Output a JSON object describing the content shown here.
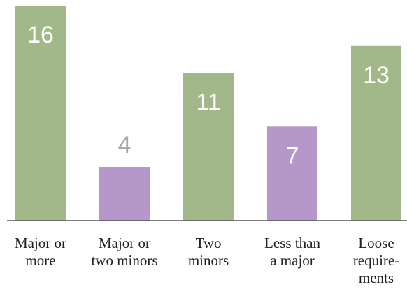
{
  "chart_data": {
    "type": "bar",
    "title": "",
    "xlabel": "",
    "ylabel": "",
    "ylim": [
      0,
      16
    ],
    "grid": false,
    "categories": [
      "Major or more",
      "Major or two minors",
      "Two minors",
      "Less than a major",
      "Loose requirements"
    ],
    "category_label_lines": [
      [
        "Major or",
        "more"
      ],
      [
        "Major or",
        "two minors"
      ],
      [
        "Two",
        "minors"
      ],
      [
        "Less than",
        "a major"
      ],
      [
        "Loose",
        "require-",
        "ments"
      ]
    ],
    "values": [
      16,
      4,
      11,
      7,
      13
    ],
    "value_labels": [
      "16",
      "4",
      "11",
      "7",
      "13"
    ],
    "bar_colors": [
      "#a3b88a",
      "#b597c9",
      "#a3b88a",
      "#b597c9",
      "#a3b88a"
    ],
    "value_label_colors": [
      "#ffffff",
      "#a6a6a6",
      "#ffffff",
      "#ffffff",
      "#ffffff"
    ]
  }
}
